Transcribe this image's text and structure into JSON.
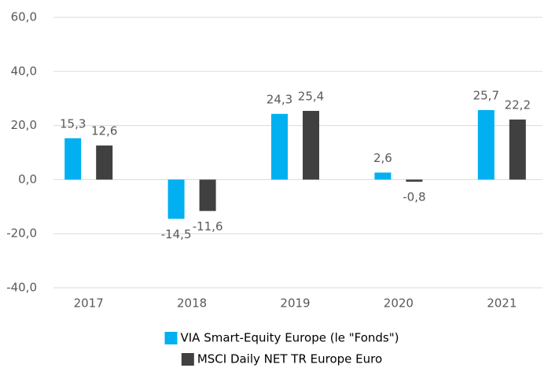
{
  "chart_data": {
    "type": "bar",
    "categories": [
      "2017",
      "2018",
      "2019",
      "2020",
      "2021"
    ],
    "series": [
      {
        "name": "VIA Smart-Equity Europe (le \"Fonds\")",
        "color": "#00b0f0",
        "values": [
          15.3,
          -14.5,
          24.3,
          2.6,
          25.7
        ],
        "value_labels": [
          "15,3",
          "-14,5",
          "24,3",
          "2,6",
          "25,7"
        ]
      },
      {
        "name": "MSCI Daily NET TR Europe Euro",
        "color": "#404040",
        "values": [
          12.6,
          -11.6,
          25.4,
          -0.8,
          22.2
        ],
        "value_labels": [
          "12,6",
          "-11,6",
          "25,4",
          "-0,8",
          "22,2"
        ]
      }
    ],
    "ylim": [
      -40,
      60
    ],
    "yticks": [
      {
        "value": -40,
        "label": "-40,0"
      },
      {
        "value": -20,
        "label": "-20,0"
      },
      {
        "value": 0,
        "label": "0,0"
      },
      {
        "value": 20,
        "label": "20,0"
      },
      {
        "value": 40,
        "label": "40,0"
      },
      {
        "value": 60,
        "label": "60,0"
      }
    ],
    "grid": true,
    "legend": "bottom"
  }
}
